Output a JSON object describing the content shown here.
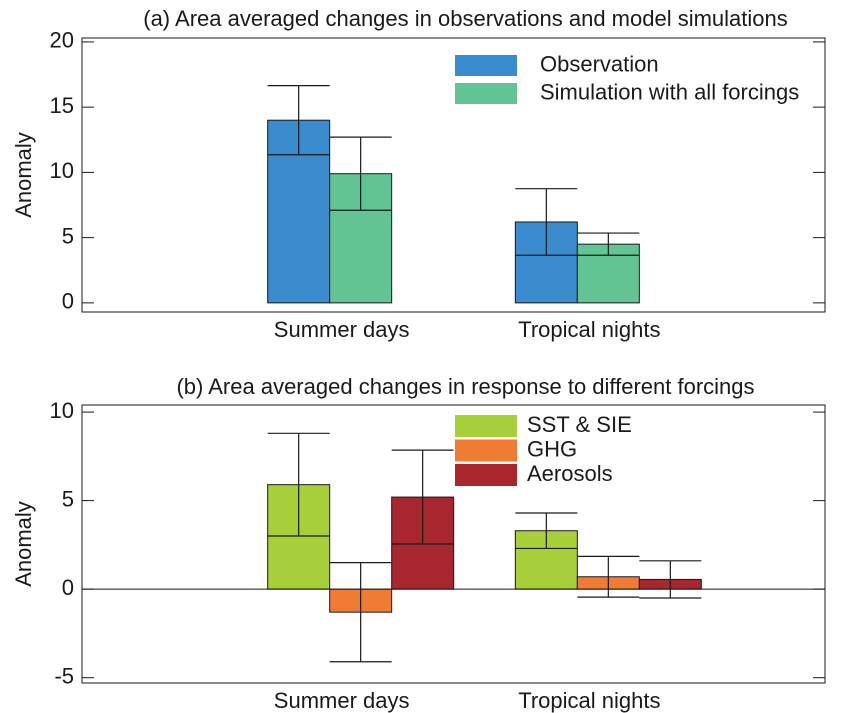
{
  "chart_data": [
    {
      "type": "bar",
      "title": "(a) Area averaged changes in observations and model simulations",
      "ylabel": "Anomaly",
      "categories": [
        "Summer days",
        "Tropical nights"
      ],
      "series": [
        {
          "name": "Observation",
          "color": "#3a8ccf",
          "values": [
            14.0,
            6.2
          ],
          "errors": [
            2.65,
            2.55
          ]
        },
        {
          "name": "Simulation with all forcings",
          "color": "#63c493",
          "values": [
            9.9,
            4.5
          ],
          "errors": [
            2.8,
            0.85
          ]
        }
      ],
      "ylim": [
        -0.7,
        20.3
      ],
      "yticks": [
        0,
        5,
        10,
        15,
        20
      ],
      "legend": "upper right",
      "zero_line": false
    },
    {
      "type": "bar",
      "title": "(b) Area averaged changes in response to different forcings",
      "ylabel": "Anomaly",
      "categories": [
        "Summer days",
        "Tropical nights"
      ],
      "series": [
        {
          "name": "SST & SIE",
          "color": "#a6cf3a",
          "values": [
            5.9,
            3.3
          ],
          "errors": [
            2.9,
            1.0
          ]
        },
        {
          "name": "GHG",
          "color": "#f07b32",
          "values": [
            -1.3,
            0.7
          ],
          "errors": [
            2.8,
            1.15
          ]
        },
        {
          "name": "Aerosols",
          "color": "#a8262e",
          "values": [
            5.2,
            0.55
          ],
          "errors": [
            2.65,
            1.05
          ]
        }
      ],
      "ylim": [
        -5.3,
        10.4
      ],
      "yticks": [
        -5,
        0,
        5,
        10
      ],
      "legend": "upper right",
      "zero_line": true
    }
  ]
}
